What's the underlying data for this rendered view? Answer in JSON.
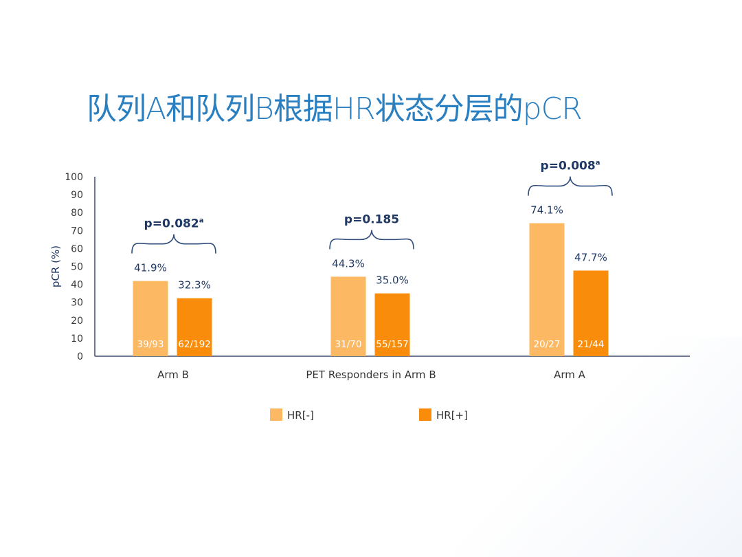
{
  "slide_title": "队列A和队列B根据HR状态分层的pCR",
  "colors": {
    "hr_neg": "#FDB863",
    "hr_pos": "#F98C0A",
    "axis": "#3b4a6b",
    "brace": "#2f4b7c",
    "title": "#2a7fc1"
  },
  "chart_data": {
    "type": "bar",
    "ylabel": "pCR (%)",
    "xlabel": "",
    "ylim": [
      0,
      100
    ],
    "yticks": [
      0,
      10,
      20,
      30,
      40,
      50,
      60,
      70,
      80,
      90,
      100
    ],
    "categories": [
      "Arm B",
      "PET Responders in Arm B",
      "Arm A"
    ],
    "series": [
      {
        "name": "HR[-]",
        "values": [
          41.9,
          44.3,
          74.1
        ],
        "value_labels": [
          "41.9%",
          "44.3%",
          "74.1%"
        ],
        "counts": [
          "39/93",
          "31/70",
          "20/27"
        ]
      },
      {
        "name": "HR[+]",
        "values": [
          32.3,
          35.0,
          47.7
        ],
        "value_labels": [
          "32.3%",
          "35.0%",
          "47.7%"
        ],
        "counts": [
          "62/192",
          "55/157",
          "21/44"
        ]
      }
    ],
    "p_values": [
      {
        "label": "p=0.082",
        "sup": "a"
      },
      {
        "label": "p=0.185",
        "sup": ""
      },
      {
        "label": "p=0.008",
        "sup": "a"
      }
    ],
    "legend_position": "bottom"
  }
}
